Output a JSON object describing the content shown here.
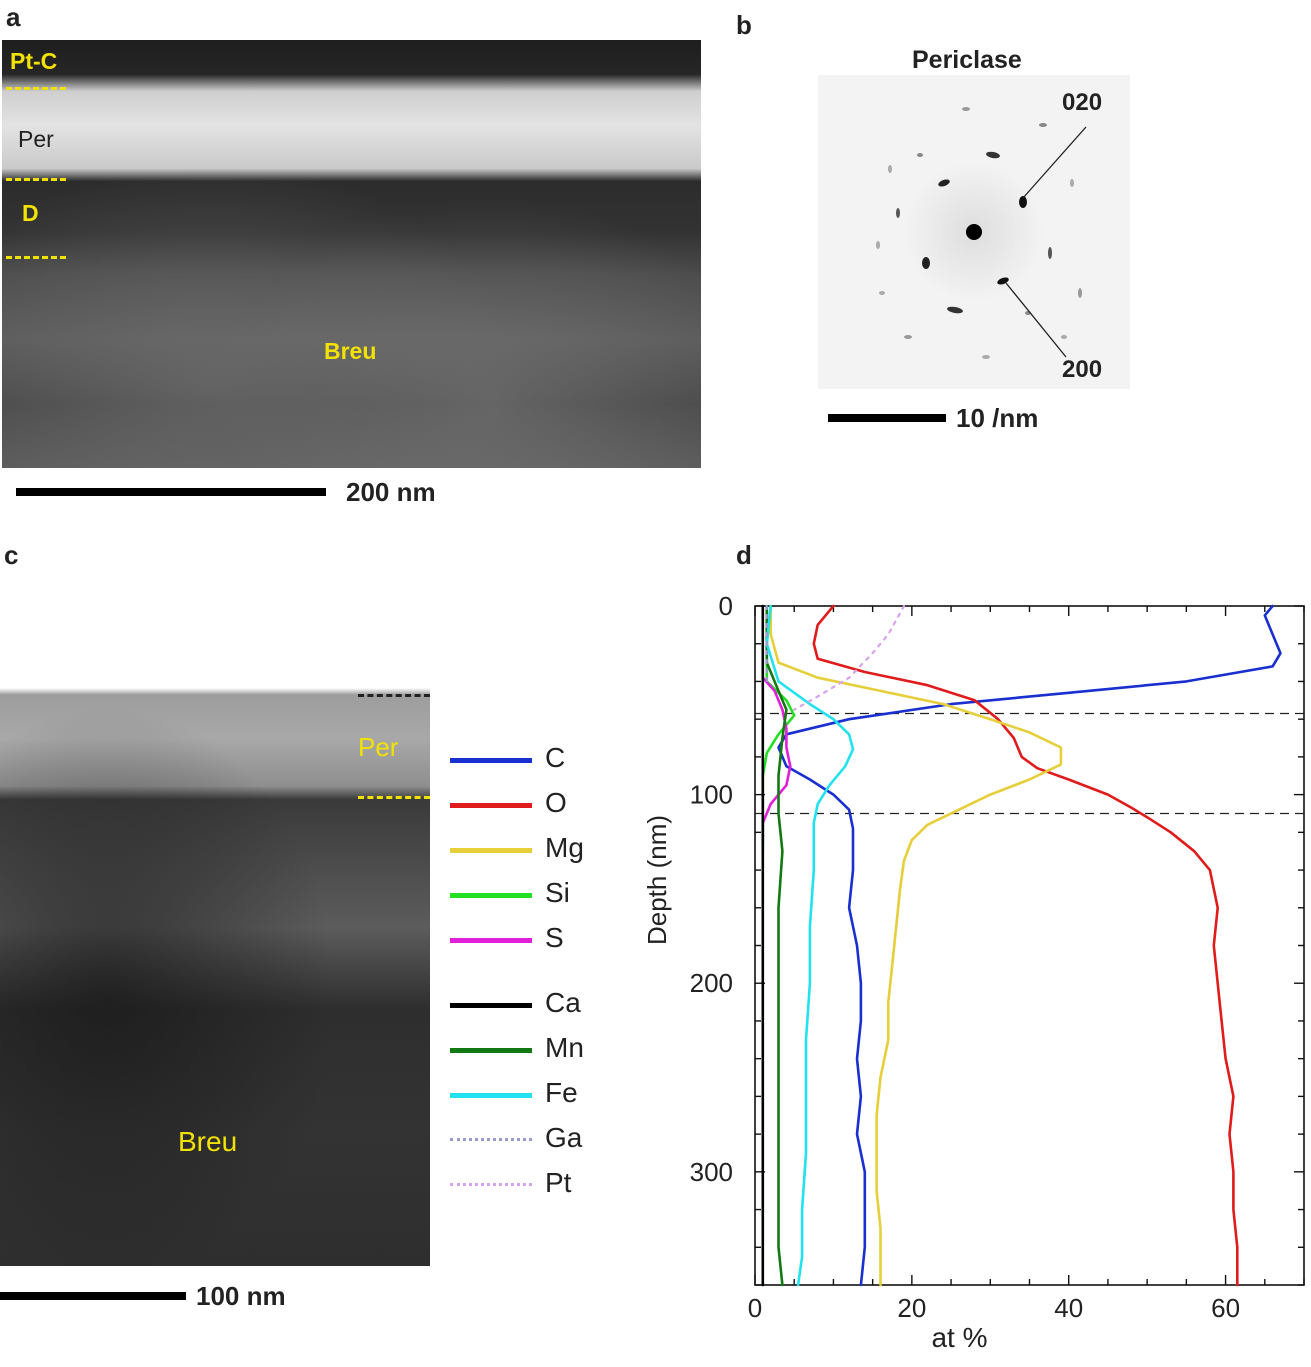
{
  "panel_a": {
    "letter": "a",
    "labels": {
      "ptc": "Pt-C",
      "per": "Per",
      "d": "D",
      "breu": "Breu"
    },
    "scalebar_text": "200 nm"
  },
  "panel_b": {
    "letter": "b",
    "title": "Periclase",
    "spot_020": "020",
    "spot_200": "200",
    "scalebar_text": "10 /nm"
  },
  "panel_c": {
    "letter": "c",
    "labels": {
      "per": "Per",
      "breu": "Breu"
    },
    "scalebar_text": "100 nm",
    "legend": [
      {
        "name": "C",
        "color": "#1a2fd0",
        "style": "solid"
      },
      {
        "name": "O",
        "color": "#e01b1b",
        "style": "solid"
      },
      {
        "name": "Mg",
        "color": "#e6cf3a",
        "style": "solid"
      },
      {
        "name": "Si",
        "color": "#22e022",
        "style": "solid"
      },
      {
        "name": "S",
        "color": "#e020d8",
        "style": "solid"
      },
      {
        "name": "Ca",
        "color": "#000000",
        "style": "solid"
      },
      {
        "name": "Mn",
        "color": "#137a13",
        "style": "solid"
      },
      {
        "name": "Fe",
        "color": "#22e2f0",
        "style": "solid"
      },
      {
        "name": "Ga",
        "color": "#9a9ad0",
        "style": "dotted"
      },
      {
        "name": "Pt",
        "color": "#d7a2f0",
        "style": "dotted"
      }
    ]
  },
  "panel_d": {
    "letter": "d"
  },
  "chart_data": {
    "type": "line",
    "title": "",
    "xlabel": "at %",
    "ylabel": "Depth (nm)",
    "xlim": [
      0,
      70
    ],
    "ylim": [
      360,
      0
    ],
    "xticks": [
      0,
      20,
      40,
      60
    ],
    "yticks": [
      0,
      100,
      200,
      300
    ],
    "reference_lines_depth": [
      57,
      110
    ],
    "series": [
      {
        "name": "C",
        "color": "#1a2fd0",
        "style": "solid",
        "points": [
          [
            66,
            0
          ],
          [
            65,
            5
          ],
          [
            66,
            15
          ],
          [
            67,
            25
          ],
          [
            66,
            32
          ],
          [
            55,
            40
          ],
          [
            40,
            46
          ],
          [
            25,
            52
          ],
          [
            12,
            60
          ],
          [
            4,
            68
          ],
          [
            3,
            75
          ],
          [
            4,
            85
          ],
          [
            7,
            92
          ],
          [
            10,
            100
          ],
          [
            12,
            108
          ],
          [
            12.5,
            118
          ],
          [
            12.5,
            140
          ],
          [
            12,
            160
          ],
          [
            13,
            180
          ],
          [
            13.5,
            200
          ],
          [
            13.5,
            220
          ],
          [
            13,
            240
          ],
          [
            13.5,
            260
          ],
          [
            13,
            280
          ],
          [
            14,
            300
          ],
          [
            14,
            320
          ],
          [
            14,
            340
          ],
          [
            13.5,
            360
          ]
        ]
      },
      {
        "name": "O",
        "color": "#e01b1b",
        "style": "solid",
        "points": [
          [
            10,
            0
          ],
          [
            8,
            10
          ],
          [
            7.5,
            20
          ],
          [
            8,
            28
          ],
          [
            14,
            35
          ],
          [
            22,
            42
          ],
          [
            28,
            50
          ],
          [
            31,
            60
          ],
          [
            33,
            70
          ],
          [
            34,
            80
          ],
          [
            36,
            86
          ],
          [
            40,
            92
          ],
          [
            45,
            100
          ],
          [
            48,
            107
          ],
          [
            50,
            112
          ],
          [
            53,
            120
          ],
          [
            56,
            130
          ],
          [
            58,
            140
          ],
          [
            59,
            160
          ],
          [
            58.5,
            180
          ],
          [
            59,
            200
          ],
          [
            59.5,
            220
          ],
          [
            60,
            240
          ],
          [
            61,
            260
          ],
          [
            60.5,
            280
          ],
          [
            61,
            300
          ],
          [
            61,
            320
          ],
          [
            61.5,
            340
          ],
          [
            61.5,
            360
          ]
        ]
      },
      {
        "name": "Mg",
        "color": "#e6cf3a",
        "style": "solid",
        "points": [
          [
            2,
            0
          ],
          [
            2,
            15
          ],
          [
            3,
            30
          ],
          [
            8,
            38
          ],
          [
            16,
            45
          ],
          [
            24,
            52
          ],
          [
            30,
            60
          ],
          [
            35,
            67
          ],
          [
            39,
            75
          ],
          [
            39,
            84
          ],
          [
            35,
            92
          ],
          [
            30,
            100
          ],
          [
            26,
            108
          ],
          [
            22,
            116
          ],
          [
            20,
            124
          ],
          [
            19,
            135
          ],
          [
            18.5,
            150
          ],
          [
            18,
            170
          ],
          [
            17.5,
            190
          ],
          [
            17,
            210
          ],
          [
            17,
            230
          ],
          [
            16,
            250
          ],
          [
            15.5,
            270
          ],
          [
            15.5,
            290
          ],
          [
            15.5,
            310
          ],
          [
            16,
            330
          ],
          [
            16,
            360
          ]
        ]
      },
      {
        "name": "Si",
        "color": "#22e022",
        "style": "solid",
        "points": [
          [
            2,
            0
          ],
          [
            1.5,
            20
          ],
          [
            1.5,
            40
          ],
          [
            4,
            50
          ],
          [
            5,
            58
          ],
          [
            3,
            68
          ],
          [
            1.5,
            78
          ],
          [
            1,
            90
          ],
          [
            1,
            110
          ],
          [
            1,
            130
          ]
        ]
      },
      {
        "name": "S",
        "color": "#e020d8",
        "style": "solid",
        "points": [
          [
            1,
            38
          ],
          [
            2.5,
            45
          ],
          [
            3.5,
            55
          ],
          [
            4,
            65
          ],
          [
            4,
            75
          ],
          [
            4.5,
            85
          ],
          [
            4,
            95
          ],
          [
            2,
            105
          ],
          [
            1,
            115
          ],
          [
            1,
            125
          ]
        ]
      },
      {
        "name": "Ca",
        "color": "#000000",
        "style": "solid",
        "points": [
          [
            1,
            0
          ],
          [
            1,
            60
          ],
          [
            1,
            120
          ],
          [
            1,
            180
          ],
          [
            1,
            240
          ],
          [
            1,
            300
          ],
          [
            1,
            360
          ]
        ]
      },
      {
        "name": "Mn",
        "color": "#137a13",
        "style": "solid",
        "points": [
          [
            1.5,
            0
          ],
          [
            1.5,
            30
          ],
          [
            3,
            45
          ],
          [
            4,
            55
          ],
          [
            3.5,
            70
          ],
          [
            3,
            90
          ],
          [
            3,
            110
          ],
          [
            3.5,
            130
          ],
          [
            3,
            160
          ],
          [
            3,
            190
          ],
          [
            3,
            220
          ],
          [
            3,
            250
          ],
          [
            3,
            280
          ],
          [
            3,
            310
          ],
          [
            3,
            340
          ],
          [
            3.5,
            360
          ]
        ]
      },
      {
        "name": "Fe",
        "color": "#22e2f0",
        "style": "solid",
        "points": [
          [
            2,
            0
          ],
          [
            1.5,
            20
          ],
          [
            3,
            40
          ],
          [
            7,
            52
          ],
          [
            10,
            60
          ],
          [
            12,
            68
          ],
          [
            12.5,
            76
          ],
          [
            11.5,
            85
          ],
          [
            9.5,
            95
          ],
          [
            8,
            105
          ],
          [
            7.5,
            115
          ],
          [
            7.5,
            140
          ],
          [
            7,
            170
          ],
          [
            7,
            200
          ],
          [
            6.5,
            230
          ],
          [
            6.5,
            260
          ],
          [
            6.5,
            290
          ],
          [
            6,
            320
          ],
          [
            6,
            345
          ],
          [
            5.5,
            360
          ]
        ]
      },
      {
        "name": "Ga",
        "color": "#9a9ad0",
        "style": "dotted",
        "points": [
          [
            1.5,
            0
          ],
          [
            1.5,
            20
          ],
          [
            1.5,
            40
          ]
        ]
      },
      {
        "name": "Pt",
        "color": "#d7a2f0",
        "style": "dotted",
        "points": [
          [
            19,
            0
          ],
          [
            17,
            15
          ],
          [
            15,
            25
          ],
          [
            12,
            38
          ],
          [
            8,
            48
          ],
          [
            5,
            55
          ]
        ]
      }
    ]
  }
}
